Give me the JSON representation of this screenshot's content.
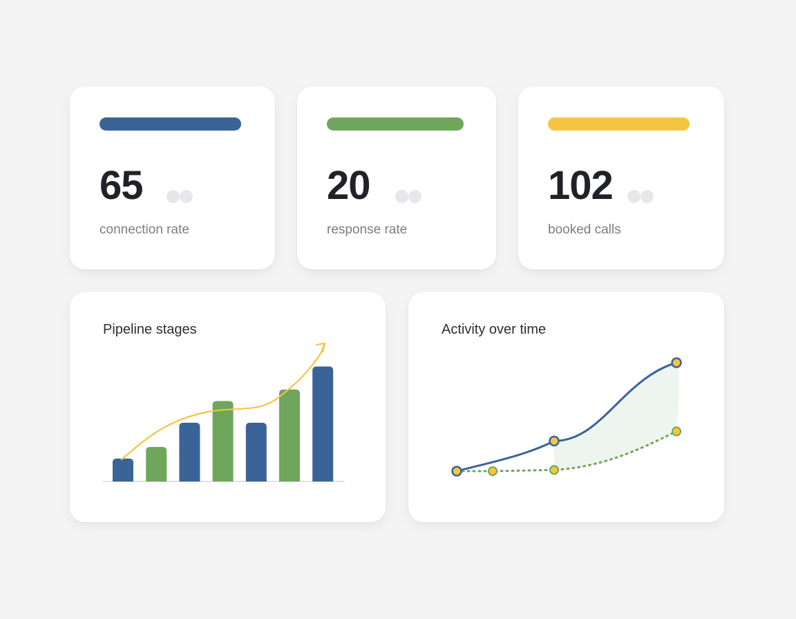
{
  "kpis": [
    {
      "value": "65",
      "label": "connection rate",
      "accent": "#3a6397"
    },
    {
      "value": "20",
      "label": "response rate",
      "accent": "#6fa65b"
    },
    {
      "value": "102",
      "label": "booked calls",
      "accent": "#f5c542"
    }
  ],
  "pipeline": {
    "title": "Pipeline stages",
    "colors": {
      "blue": "#3a6397",
      "green": "#6fa65b",
      "trend": "#f5c542",
      "axis": "#d6d8dc"
    },
    "chart_data": {
      "type": "bar",
      "values": [
        18,
        27,
        46,
        63,
        46,
        72,
        90
      ],
      "bar_colors": [
        "blue",
        "green",
        "blue",
        "green",
        "blue",
        "green",
        "blue"
      ],
      "trend_line": true,
      "ylim": [
        0,
        100
      ]
    }
  },
  "activity": {
    "title": "Activity over time",
    "colors": {
      "primary": "#3a6397",
      "secondary": "#6fa65b",
      "marker": "#f5c542",
      "band": "#eef4ee"
    },
    "chart_data": {
      "type": "line",
      "x": [
        0,
        1,
        2,
        3
      ],
      "series": [
        {
          "values": [
            10,
            null,
            35,
            100
          ],
          "style": "solid"
        },
        {
          "values": [
            10,
            10,
            11,
            43
          ],
          "style": "dotted"
        }
      ],
      "ylim": [
        0,
        100
      ]
    }
  }
}
